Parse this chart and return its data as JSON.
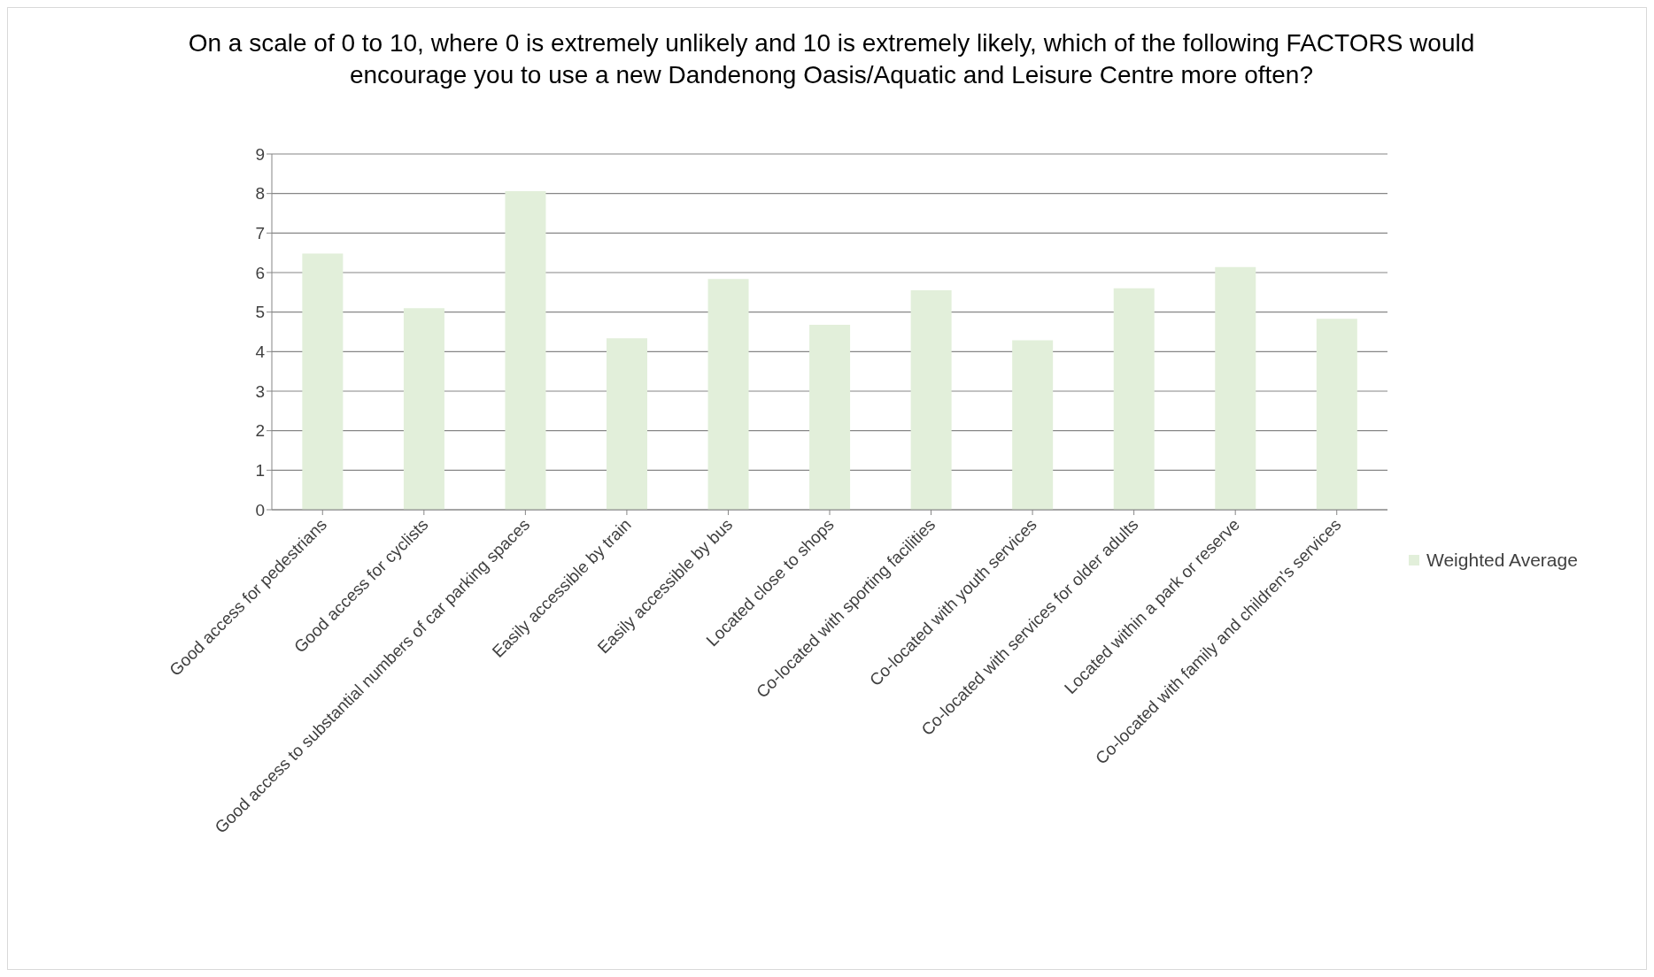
{
  "chart_data": {
    "type": "bar",
    "title": "On a scale of 0 to 10, where 0 is extremely unlikely and 10 is extremely likely, which of the following FACTORS would encourage you to use a new Dandenong Oasis/Aquatic and Leisure Centre more often?",
    "categories": [
      "Good access for pedestrians",
      "Good access for cyclists",
      "Good access to substantial numbers of car parking spaces",
      "Easily accessible by train",
      "Easily accessible by bus",
      "Located close to shops",
      "Co-located with sporting facilities",
      "Co-located with youth services",
      "Co-located with services for older adults",
      "Located within a park or reserve",
      "Co-located with family and children's services"
    ],
    "series": [
      {
        "name": "Weighted Average",
        "color": "#e2efda",
        "values": [
          6.48,
          5.1,
          8.06,
          4.34,
          5.84,
          4.68,
          5.55,
          4.29,
          5.6,
          6.14,
          4.83
        ]
      }
    ],
    "ylim": [
      0,
      9
    ],
    "yticks": [
      0,
      1,
      2,
      3,
      4,
      5,
      6,
      7,
      8,
      9
    ],
    "grid": "y",
    "legend": "right"
  }
}
